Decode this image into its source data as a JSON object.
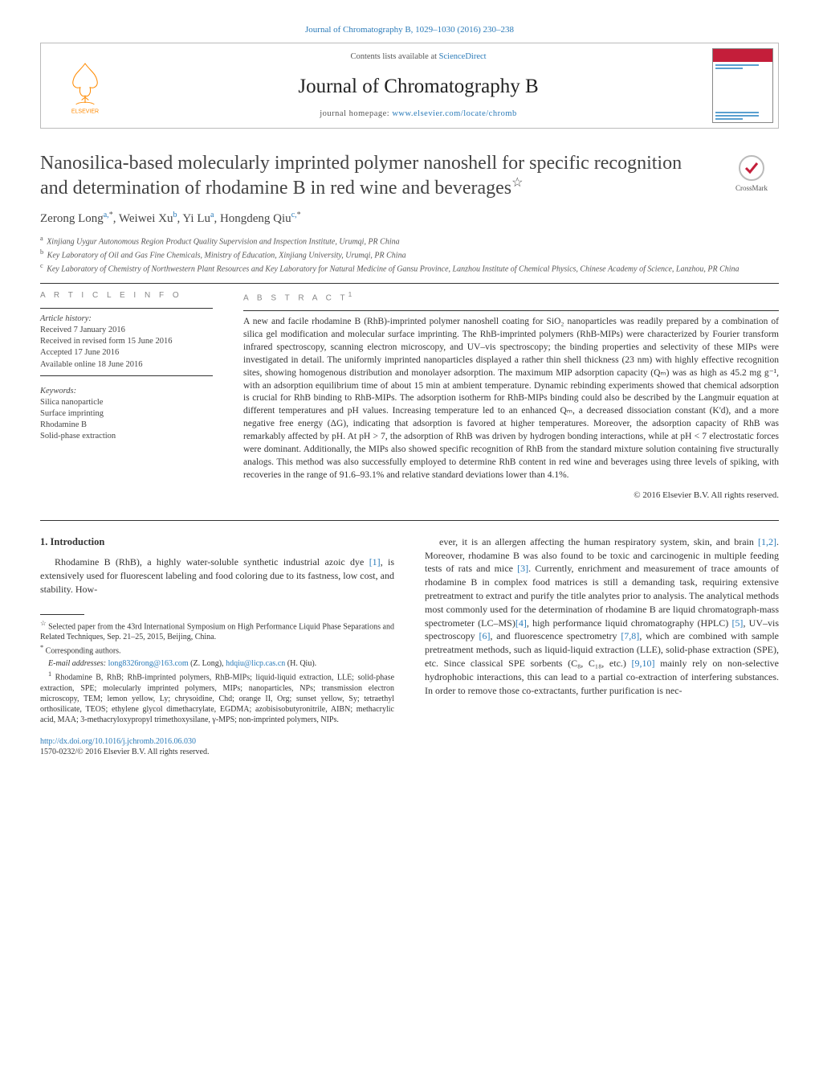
{
  "top_link": "Journal of Chromatography B, 1029–1030 (2016) 230–238",
  "header": {
    "contents_prefix": "Contents lists available at ",
    "contents_link": "ScienceDirect",
    "journal_name": "Journal of Chromatography B",
    "homepage_prefix": "journal homepage: ",
    "homepage_url": "www.elsevier.com/locate/chromb",
    "publisher_logo_label": "ELSEVIER"
  },
  "crossmark_label": "CrossMark",
  "title": "Nanosilica-based molecularly imprinted polymer nanoshell for specific recognition and determination of rhodamine B in red wine and beverages",
  "title_footnote_marker": "☆",
  "authors_html": "Zerong Long<sup class='sup-link'>a,</sup><sup>*</sup>, Weiwei Xu<sup class='sup-link'>b</sup>, Yi Lu<sup class='sup-link'>a</sup>, Hongdeng Qiu<sup class='sup-link'>c,</sup><sup>*</sup>",
  "affiliations": [
    {
      "mark": "a",
      "text": "Xinjiang Uygur Autonomous Region Product Quality Supervision and Inspection Institute, Urumqi, PR China"
    },
    {
      "mark": "b",
      "text": "Key Laboratory of Oil and Gas Fine Chemicals, Ministry of Education, Xinjiang University, Urumqi, PR China"
    },
    {
      "mark": "c",
      "text": "Key Laboratory of Chemistry of Northwestern Plant Resources and Key Laboratory for Natural Medicine of Gansu Province, Lanzhou Institute of Chemical Physics, Chinese Academy of Science, Lanzhou, PR China"
    }
  ],
  "article_info": {
    "heading": "a r t i c l e   i n f o",
    "history_label": "Article history:",
    "history": [
      "Received 7 January 2016",
      "Received in revised form 15 June 2016",
      "Accepted 17 June 2016",
      "Available online 18 June 2016"
    ],
    "keywords_label": "Keywords:",
    "keywords": [
      "Silica nanoparticle",
      "Surface imprinting",
      "Rhodamine B",
      "Solid-phase extraction"
    ]
  },
  "abstract": {
    "heading": "a b s t r a c t",
    "footnote_marker": "1",
    "text": "A new and facile rhodamine B (RhB)-imprinted polymer nanoshell coating for SiO₂ nanoparticles was readily prepared by a combination of silica gel modification and molecular surface imprinting. The RhB-imprinted polymers (RhB-MIPs) were characterized by Fourier transform infrared spectroscopy, scanning electron microscopy, and UV–vis spectroscopy; the binding properties and selectivity of these MIPs were investigated in detail. The uniformly imprinted nanoparticles displayed a rather thin shell thickness (23 nm) with highly effective recognition sites, showing homogenous distribution and monolayer adsorption. The maximum MIP adsorption capacity (Qₘ) was as high as 45.2 mg g⁻¹, with an adsorption equilibrium time of about 15 min at ambient temperature. Dynamic rebinding experiments showed that chemical adsorption is crucial for RhB binding to RhB-MIPs. The adsorption isotherm for RhB-MIPs binding could also be described by the Langmuir equation at different temperatures and pH values. Increasing temperature led to an enhanced Qₘ, a decreased dissociation constant (K'd), and a more negative free energy (ΔG), indicating that adsorption is favored at higher temperatures. Moreover, the adsorption capacity of RhB was remarkably affected by pH. At pH > 7, the adsorption of RhB was driven by hydrogen bonding interactions, while at pH < 7 electrostatic forces were dominant. Additionally, the MIPs also showed specific recognition of RhB from the standard mixture solution containing five structurally analogs. This method was also successfully employed to determine RhB content in red wine and beverages using three levels of spiking, with recoveries in the range of 91.6–93.1% and relative standard deviations lower than 4.1%.",
    "copyright": "© 2016 Elsevier B.V. All rights reserved."
  },
  "body": {
    "section_heading": "1. Introduction",
    "col1_para": "Rhodamine B (RhB), a highly water-soluble synthetic industrial azoic dye [1], is extensively used for fluorescent labeling and food coloring due to its fastness, low cost, and stability. How-",
    "col2_para": "ever, it is an allergen affecting the human respiratory system, skin, and brain [1,2]. Moreover, rhodamine B was also found to be toxic and carcinogenic in multiple feeding tests of rats and mice [3]. Currently, enrichment and measurement of trace amounts of rhodamine B in complex food matrices is still a demanding task, requiring extensive pretreatment to extract and purify the title analytes prior to analysis. The analytical methods most commonly used for the determination of rhodamine B are liquid chromatograph-mass spectrometer (LC–MS)[4], high performance liquid chromatography (HPLC) [5], UV–vis spectroscopy [6], and fluorescence spectrometry [7,8], which are combined with sample pretreatment methods, such as liquid-liquid extraction (LLE), solid-phase extraction (SPE), etc. Since classical SPE sorbents (C₈, C₁₈, etc.) [9,10] mainly rely on non-selective hydrophobic interactions, this can lead to a partial co-extraction of interfering substances. In order to remove those co-extractants, further purification is nec-"
  },
  "footnotes": {
    "star": "Selected paper from the 43rd International Symposium on High Performance Liquid Phase Separations and Related Techniques, Sep. 21–25, 2015, Beijing, China.",
    "corresponding": "Corresponding authors.",
    "emails_prefix": "E-mail addresses: ",
    "email1": "long8326rong@163.com",
    "email1_who": " (Z. Long), ",
    "email2": "hdqiu@licp.cas.cn",
    "email2_who": " (H. Qiu).",
    "abbrev": "Rhodamine B, RhB; RhB-imprinted polymers, RhB-MIPs; liquid-liquid extraction, LLE; solid-phase extraction, SPE; molecularly imprinted polymers, MIPs; nanoparticles, NPs; transmission electron microscopy, TEM; lemon yellow, Ly; chrysoidine, Chd; orange II, Org; sunset yellow, Sy; tetraethyl orthosilicate, TEOS; ethylene glycol dimethacrylate, EGDMA; azobisisobutyronitrile, AIBN; methacrylic acid, MAA; 3-methacryloxypropyl trimethoxysilane, γ-MPS; non-imprinted polymers, NIPs."
  },
  "doi": {
    "url": "http://dx.doi.org/10.1016/j.jchromb.2016.06.030",
    "issn_line": "1570-0232/© 2016 Elsevier B.V. All rights reserved."
  },
  "colors": {
    "link": "#2b7bb9",
    "text": "#333333",
    "muted": "#888888",
    "cover_red": "#c41e3a",
    "elsevier_orange": "#ff8a00"
  }
}
